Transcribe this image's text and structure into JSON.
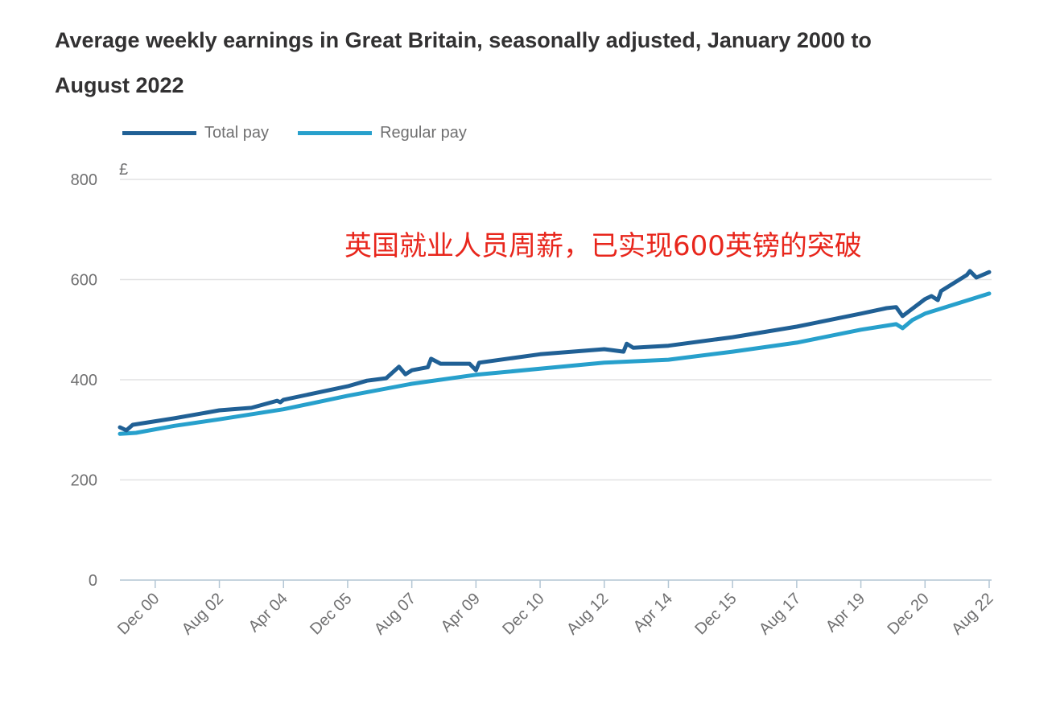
{
  "chart_data": {
    "type": "line",
    "title": "Average weekly earnings in Great Britain, seasonally adjusted, January 2000 to August 2022",
    "ylabel": "£",
    "xlabel": "",
    "ylim": [
      0,
      800
    ],
    "xlim": [
      "2000-01",
      "2022-08"
    ],
    "y_ticks": [
      0,
      200,
      400,
      600,
      800
    ],
    "x_ticks": [
      {
        "date": "2000-12",
        "label": "Dec 00"
      },
      {
        "date": "2002-08",
        "label": "Aug 02"
      },
      {
        "date": "2004-04",
        "label": "Apr 04"
      },
      {
        "date": "2005-12",
        "label": "Dec 05"
      },
      {
        "date": "2007-08",
        "label": "Aug 07"
      },
      {
        "date": "2009-04",
        "label": "Apr 09"
      },
      {
        "date": "2010-12",
        "label": "Dec 10"
      },
      {
        "date": "2012-08",
        "label": "Aug 12"
      },
      {
        "date": "2014-04",
        "label": "Apr 14"
      },
      {
        "date": "2015-12",
        "label": "Dec 15"
      },
      {
        "date": "2017-08",
        "label": "Aug 17"
      },
      {
        "date": "2019-04",
        "label": "Apr 19"
      },
      {
        "date": "2020-12",
        "label": "Dec 20"
      },
      {
        "date": "2022-08",
        "label": "Aug 22"
      }
    ],
    "grid": true,
    "legend_placement": "top-left",
    "series": [
      {
        "name": "Total pay",
        "color": "#206095",
        "points": [
          [
            "2000-01",
            305
          ],
          [
            "2000-03",
            299
          ],
          [
            "2000-05",
            310
          ],
          [
            "2001-06",
            323
          ],
          [
            "2002-08",
            339
          ],
          [
            "2003-06",
            344
          ],
          [
            "2004-02",
            358
          ],
          [
            "2004-03",
            355
          ],
          [
            "2004-04",
            360
          ],
          [
            "2005-12",
            387
          ],
          [
            "2006-06",
            398
          ],
          [
            "2006-12",
            403
          ],
          [
            "2007-04",
            426
          ],
          [
            "2007-06",
            411
          ],
          [
            "2007-08",
            419
          ],
          [
            "2008-01",
            425
          ],
          [
            "2008-02",
            442
          ],
          [
            "2008-05",
            432
          ],
          [
            "2009-02",
            432
          ],
          [
            "2009-04",
            419
          ],
          [
            "2009-05",
            434
          ],
          [
            "2010-12",
            451
          ],
          [
            "2012-08",
            461
          ],
          [
            "2013-02",
            456
          ],
          [
            "2013-03",
            472
          ],
          [
            "2013-05",
            464
          ],
          [
            "2014-04",
            468
          ],
          [
            "2015-12",
            485
          ],
          [
            "2017-08",
            506
          ],
          [
            "2019-04",
            532
          ],
          [
            "2019-12",
            543
          ],
          [
            "2020-03",
            545
          ],
          [
            "2020-05",
            527
          ],
          [
            "2020-12",
            561
          ],
          [
            "2021-02",
            567
          ],
          [
            "2021-04",
            559
          ],
          [
            "2021-05",
            577
          ],
          [
            "2022-01",
            609
          ],
          [
            "2022-02",
            617
          ],
          [
            "2022-04",
            604
          ],
          [
            "2022-08",
            615
          ]
        ]
      },
      {
        "name": "Regular pay",
        "color": "#27a0cc",
        "points": [
          [
            "2000-01",
            292
          ],
          [
            "2000-06",
            294
          ],
          [
            "2001-06",
            308
          ],
          [
            "2002-08",
            321
          ],
          [
            "2004-04",
            341
          ],
          [
            "2005-12",
            368
          ],
          [
            "2007-08",
            392
          ],
          [
            "2009-04",
            410
          ],
          [
            "2010-12",
            422
          ],
          [
            "2012-08",
            434
          ],
          [
            "2014-04",
            440
          ],
          [
            "2015-12",
            456
          ],
          [
            "2017-08",
            474
          ],
          [
            "2019-04",
            500
          ],
          [
            "2020-03",
            511
          ],
          [
            "2020-05",
            503
          ],
          [
            "2020-08",
            519
          ],
          [
            "2020-12",
            532
          ],
          [
            "2022-08",
            572
          ]
        ]
      }
    ],
    "annotation": "英国就业人员周薪，已实现600英镑的突破"
  }
}
